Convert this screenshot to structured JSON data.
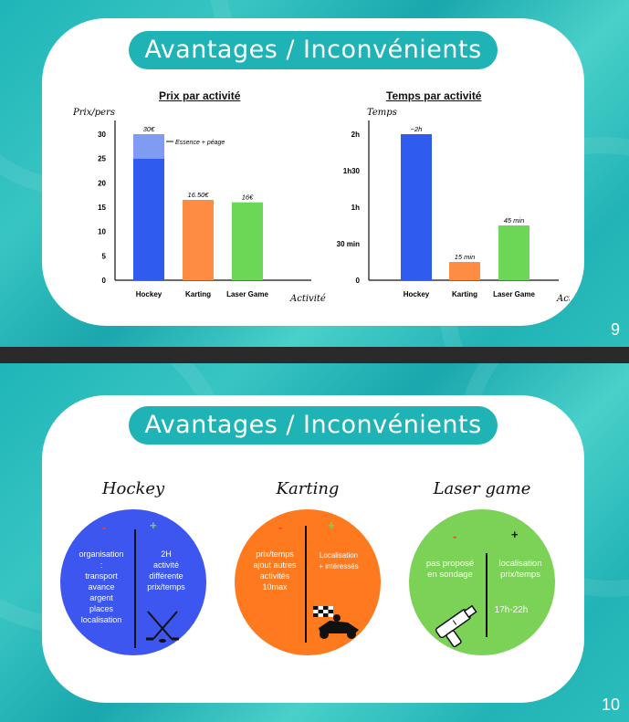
{
  "slide9": {
    "title": "Avantages / Inconvénients",
    "page_number": "9",
    "chart_prix": {
      "type": "bar",
      "title": "Prix par activité",
      "ylabel": "Prix/pers",
      "xlabel": "Activité",
      "categories": [
        "Hockey",
        "Karting",
        "Laser Game"
      ],
      "values": [
        30,
        16.5,
        16
      ],
      "value_labels": [
        "30€",
        "16.50€",
        "16€"
      ],
      "yticks": [
        "0",
        "5",
        "10",
        "15",
        "20",
        "25",
        "30"
      ],
      "ylim": [
        0,
        30
      ],
      "hockey_base": 25,
      "annotation": "Essence + péage",
      "colors": [
        "#2f5bef",
        "#ff8c42",
        "#6cd657"
      ],
      "hockey_extra_color": "#7f9bf2"
    },
    "chart_temps": {
      "type": "bar",
      "title": "Temps par activité",
      "ylabel": "Temps",
      "xlabel": "Activité",
      "categories": [
        "Hockey",
        "Karting",
        "Laser Game"
      ],
      "values_min": [
        120,
        15,
        45
      ],
      "value_labels": [
        "~2h",
        "15 min",
        "45 min"
      ],
      "yticks": [
        "0",
        "30 min",
        "1h",
        "1h30",
        "2h"
      ],
      "ylim": [
        0,
        120
      ],
      "colors": [
        "#2f5bef",
        "#ff8c42",
        "#6cd657"
      ]
    }
  },
  "slide10": {
    "title": "Avantages / Inconvénients",
    "page_number": "10",
    "activities": [
      {
        "name": "Hockey",
        "color": "#3d56f0",
        "minus": "-",
        "plus": "+",
        "cons": [
          "organisation",
          ":",
          "transport",
          "avance",
          "argent",
          "places",
          "localisation"
        ],
        "pros": [
          "2H",
          "activité",
          "différente",
          "prix/temps"
        ],
        "icon": "hockey-sticks-icon"
      },
      {
        "name": "Karting",
        "color": "#ff7a1f",
        "minus": "-",
        "plus": "+",
        "cons": [
          "prix/temps",
          "ajout autres",
          "activités",
          "10max"
        ],
        "pros": [
          "Localisation",
          "+ intéressés"
        ],
        "icon": "go-kart-icon"
      },
      {
        "name": "Laser game",
        "color": "#7bd257",
        "minus": "-",
        "plus": "+",
        "cons": [
          "pas proposé",
          "en sondage"
        ],
        "pros": [
          "localisation",
          "prix/temps"
        ],
        "extra": "17h-22h",
        "icon": "laser-gun-icon"
      }
    ]
  }
}
